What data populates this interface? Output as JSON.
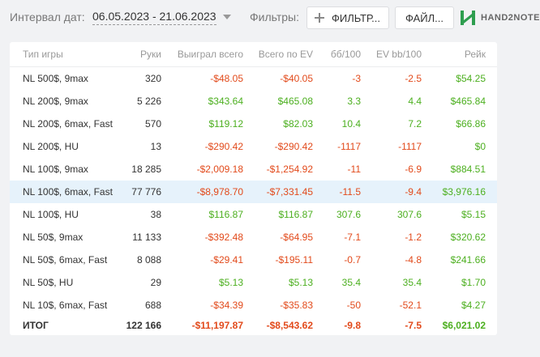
{
  "toolbar": {
    "date_label": "Интервал дат:",
    "date_range": "06.05.2023 - 21.06.2023",
    "filters_label": "Фильтры:",
    "filters_button": "ФИЛЬТР...",
    "files_button": "ФАЙЛ...",
    "brand": "HAND2NOTE"
  },
  "colors": {
    "negative": "#e24a1b",
    "positive": "#4caf1f",
    "highlight_row": "#e6f2fb",
    "brand_logo": "#2e9e4f"
  },
  "table": {
    "columns": [
      "Тип игры",
      "Руки",
      "Выиграл всего",
      "Всего по EV",
      "бб/100",
      "EV bb/100",
      "Рейк"
    ],
    "rows": [
      {
        "game": "NL 500$, 9max",
        "hands": "320",
        "won": "-$48.05",
        "ev": "-$40.05",
        "bb100": "-3",
        "evbb100": "-2.5",
        "rake": "$54.25"
      },
      {
        "game": "NL 200$, 9max",
        "hands": "5 226",
        "won": "$343.64",
        "ev": "$465.08",
        "bb100": "3.3",
        "evbb100": "4.4",
        "rake": "$465.84"
      },
      {
        "game": "NL 200$, 6max, Fast",
        "hands": "570",
        "won": "$119.12",
        "ev": "$82.03",
        "bb100": "10.4",
        "evbb100": "7.2",
        "rake": "$66.86"
      },
      {
        "game": "NL 200$, HU",
        "hands": "13",
        "won": "-$290.42",
        "ev": "-$290.42",
        "bb100": "-1117",
        "evbb100": "-1117",
        "rake": "$0"
      },
      {
        "game": "NL 100$, 9max",
        "hands": "18 285",
        "won": "-$2,009.18",
        "ev": "-$1,254.92",
        "bb100": "-11",
        "evbb100": "-6.9",
        "rake": "$884.51"
      },
      {
        "game": "NL 100$, 6max, Fast",
        "hands": "77 776",
        "won": "-$8,978.70",
        "ev": "-$7,331.45",
        "bb100": "-11.5",
        "evbb100": "-9.4",
        "rake": "$3,976.16",
        "highlight": true
      },
      {
        "game": "NL 100$, HU",
        "hands": "38",
        "won": "$116.87",
        "ev": "$116.87",
        "bb100": "307.6",
        "evbb100": "307.6",
        "rake": "$5.15"
      },
      {
        "game": "NL 50$, 9max",
        "hands": "11 133",
        "won": "-$392.48",
        "ev": "-$64.95",
        "bb100": "-7.1",
        "evbb100": "-1.2",
        "rake": "$320.62"
      },
      {
        "game": "NL 50$, 6max, Fast",
        "hands": "8 088",
        "won": "-$29.41",
        "ev": "-$195.11",
        "bb100": "-0.7",
        "evbb100": "-4.8",
        "rake": "$241.66"
      },
      {
        "game": "NL 50$, HU",
        "hands": "29",
        "won": "$5.13",
        "ev": "$5.13",
        "bb100": "35.4",
        "evbb100": "35.4",
        "rake": "$1.70"
      },
      {
        "game": "NL 10$, 6max, Fast",
        "hands": "688",
        "won": "-$34.39",
        "ev": "-$35.83",
        "bb100": "-50",
        "evbb100": "-52.1",
        "rake": "$4.27"
      }
    ],
    "total": {
      "game": "ИТОГ",
      "hands": "122 166",
      "won": "-$11,197.87",
      "ev": "-$8,543.62",
      "bb100": "-9.8",
      "evbb100": "-7.5",
      "rake": "$6,021.02"
    }
  }
}
